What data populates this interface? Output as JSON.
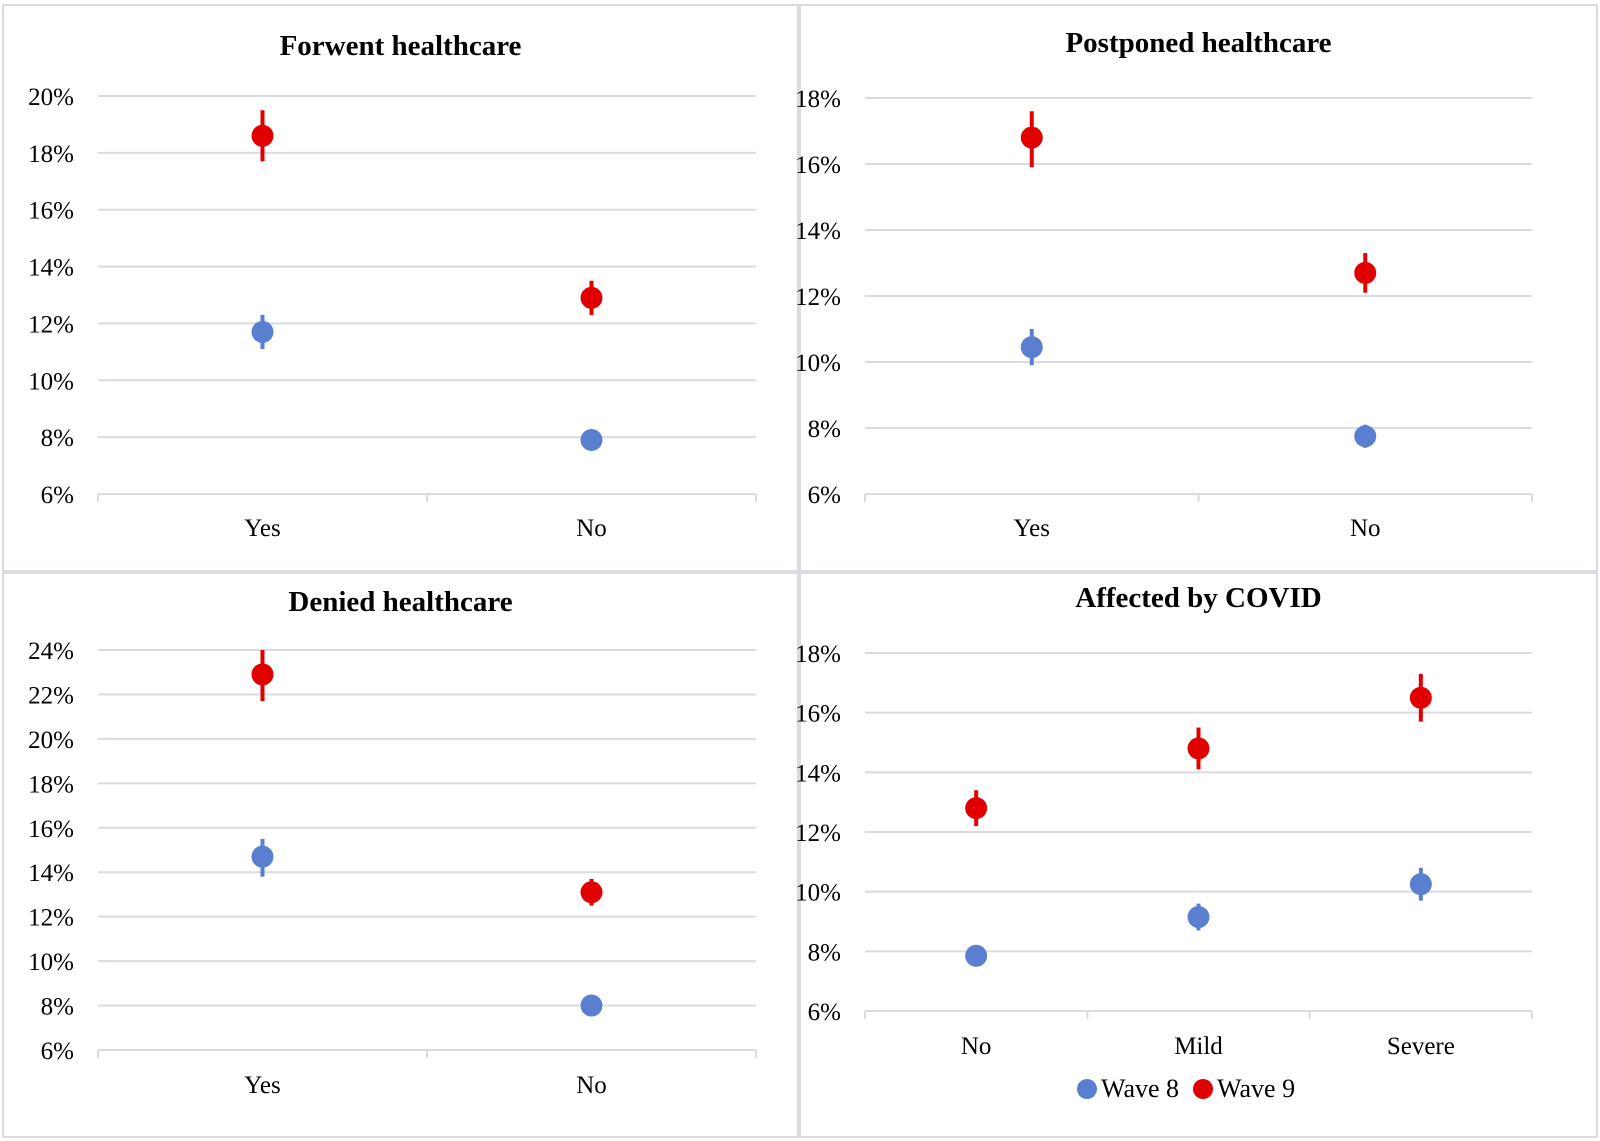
{
  "colors": {
    "wave8": "#5a7fd1",
    "wave9": "#e00000",
    "grid": "#d9dce3"
  },
  "legend": [
    {
      "label": "Wave 8",
      "color": "#5a7fd1"
    },
    {
      "label": "Wave 9",
      "color": "#e00000"
    }
  ],
  "chart_data": [
    {
      "type": "scatter",
      "title": "Forwent healthcare",
      "categories": [
        "Yes",
        "No"
      ],
      "ylim": [
        6,
        20
      ],
      "yticks": [
        "6%",
        "8%",
        "10%",
        "12%",
        "14%",
        "16%",
        "18%",
        "20%"
      ],
      "series": [
        {
          "name": "Wave 8",
          "values": [
            11.7,
            7.9
          ],
          "error_low": [
            11.1,
            7.7
          ],
          "error_high": [
            12.3,
            8.1
          ]
        },
        {
          "name": "Wave 9",
          "values": [
            18.6,
            12.9
          ],
          "error_low": [
            17.7,
            12.3
          ],
          "error_high": [
            19.5,
            13.5
          ]
        }
      ]
    },
    {
      "type": "scatter",
      "title": "Postponed healthcare",
      "categories": [
        "Yes",
        "No"
      ],
      "ylim": [
        6,
        18
      ],
      "yticks": [
        "6%",
        "8%",
        "10%",
        "12%",
        "14%",
        "16%",
        "18%"
      ],
      "series": [
        {
          "name": "Wave 8",
          "values": [
            10.45,
            7.75
          ],
          "error_low": [
            9.9,
            7.4
          ],
          "error_high": [
            11.0,
            8.1
          ]
        },
        {
          "name": "Wave 9",
          "values": [
            16.8,
            12.7
          ],
          "error_low": [
            15.9,
            12.1
          ],
          "error_high": [
            17.6,
            13.3
          ]
        }
      ]
    },
    {
      "type": "scatter",
      "title": "Denied healthcare",
      "categories": [
        "Yes",
        "No"
      ],
      "ylim": [
        6,
        24
      ],
      "yticks": [
        "6%",
        "8%",
        "10%",
        "12%",
        "14%",
        "16%",
        "18%",
        "20%",
        "22%",
        "24%"
      ],
      "series": [
        {
          "name": "Wave 8",
          "values": [
            14.7,
            8.0
          ],
          "error_low": [
            13.8,
            7.8
          ],
          "error_high": [
            15.5,
            8.2
          ]
        },
        {
          "name": "Wave 9",
          "values": [
            22.9,
            13.1
          ],
          "error_low": [
            21.7,
            12.5
          ],
          "error_high": [
            24.0,
            13.7
          ]
        }
      ]
    },
    {
      "type": "scatter",
      "title": "Affected by COVID",
      "categories": [
        "No",
        "Mild",
        "Severe"
      ],
      "ylim": [
        6,
        18
      ],
      "yticks": [
        "6%",
        "8%",
        "10%",
        "12%",
        "14%",
        "16%",
        "18%"
      ],
      "series": [
        {
          "name": "Wave 8",
          "values": [
            7.85,
            9.15,
            10.25
          ],
          "error_low": [
            7.6,
            8.7,
            9.7
          ],
          "error_high": [
            8.1,
            9.6,
            10.8
          ]
        },
        {
          "name": "Wave 9",
          "values": [
            12.8,
            14.8,
            16.5
          ],
          "error_low": [
            12.2,
            14.1,
            15.7
          ],
          "error_high": [
            13.4,
            15.5,
            17.3
          ]
        }
      ]
    }
  ]
}
